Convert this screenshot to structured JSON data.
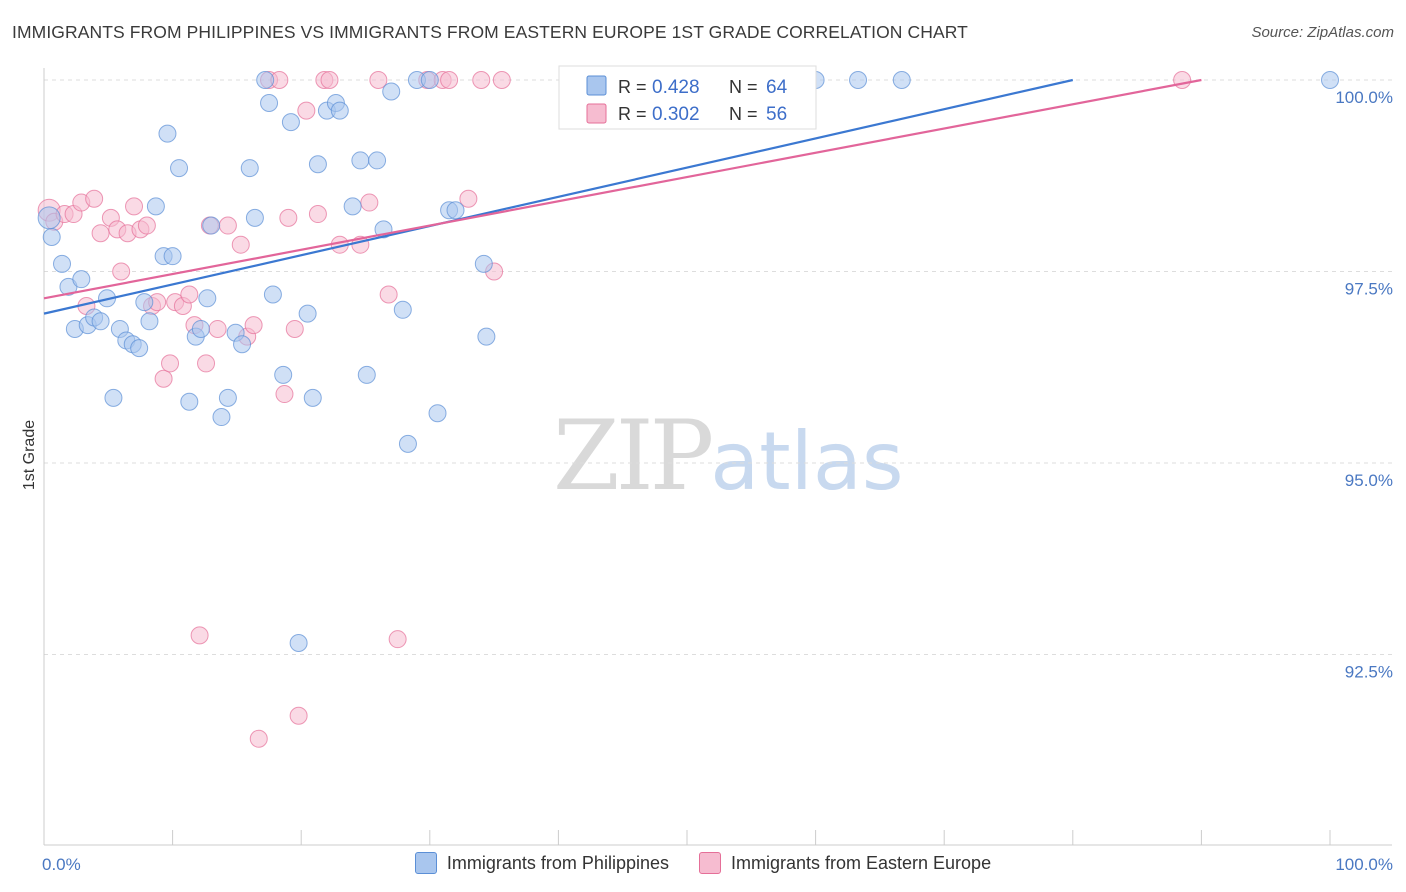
{
  "title": "IMMIGRANTS FROM PHILIPPINES VS IMMIGRANTS FROM EASTERN EUROPE 1ST GRADE CORRELATION CHART",
  "source": "Source: ZipAtlas.com",
  "watermark": {
    "zip": "ZIP",
    "atlas": "atlas"
  },
  "colors": {
    "blue": "#5b8fd6",
    "blue_fill": "#a9c6ee",
    "pink": "#e56f98",
    "pink_fill": "#f6bcd0",
    "tick_text": "#4a78c2",
    "grid": "#dddddd"
  },
  "legend": {
    "series1": {
      "r_label": "R =",
      "r_value": "0.428",
      "n_label": "N =",
      "n_value": "64"
    },
    "series2": {
      "r_label": "R =",
      "r_value": "0.302",
      "n_label": "N =",
      "n_value": "56"
    }
  },
  "bottom_legend": {
    "series1": "Immigrants from Philippines",
    "series2": "Immigrants from Eastern Europe"
  },
  "chart_data": {
    "type": "scatter",
    "title": "IMMIGRANTS FROM PHILIPPINES VS IMMIGRANTS FROM EASTERN EUROPE 1ST GRADE CORRELATION CHART",
    "xlabel": "",
    "ylabel": "1st Grade",
    "xlim": [
      0,
      100
    ],
    "ylim": [
      90.1,
      100.3
    ],
    "x_tick_labels": [
      "0.0%",
      "100.0%"
    ],
    "y_ticks": [
      100.0,
      97.5,
      95.0,
      92.5
    ],
    "y_tick_labels": [
      "100.0%",
      "97.5%",
      "95.0%",
      "92.5%"
    ],
    "grid": true,
    "series": [
      {
        "name": "Immigrants from Philippines",
        "color": "#5b8fd6",
        "trend": {
          "x": [
            0,
            80
          ],
          "y": [
            96.95,
            100.0
          ]
        },
        "points": [
          {
            "x": 0.4,
            "y": 98.2
          },
          {
            "x": 0.6,
            "y": 97.95
          },
          {
            "x": 1.4,
            "y": 97.6
          },
          {
            "x": 1.9,
            "y": 97.3
          },
          {
            "x": 2.4,
            "y": 96.75
          },
          {
            "x": 2.9,
            "y": 97.4
          },
          {
            "x": 3.4,
            "y": 96.8
          },
          {
            "x": 3.9,
            "y": 96.9
          },
          {
            "x": 4.4,
            "y": 96.85
          },
          {
            "x": 4.9,
            "y": 97.15
          },
          {
            "x": 5.4,
            "y": 95.85
          },
          {
            "x": 5.9,
            "y": 96.75
          },
          {
            "x": 6.4,
            "y": 96.6
          },
          {
            "x": 6.9,
            "y": 96.55
          },
          {
            "x": 7.4,
            "y": 96.5
          },
          {
            "x": 7.8,
            "y": 97.1
          },
          {
            "x": 8.2,
            "y": 96.85
          },
          {
            "x": 8.7,
            "y": 98.35
          },
          {
            "x": 9.3,
            "y": 97.7
          },
          {
            "x": 9.6,
            "y": 99.3
          },
          {
            "x": 10.0,
            "y": 97.7
          },
          {
            "x": 10.5,
            "y": 98.85
          },
          {
            "x": 11.3,
            "y": 95.8
          },
          {
            "x": 11.8,
            "y": 96.65
          },
          {
            "x": 12.2,
            "y": 96.75
          },
          {
            "x": 12.7,
            "y": 97.15
          },
          {
            "x": 13.0,
            "y": 98.1
          },
          {
            "x": 13.8,
            "y": 95.6
          },
          {
            "x": 14.3,
            "y": 95.85
          },
          {
            "x": 14.9,
            "y": 96.7
          },
          {
            "x": 15.4,
            "y": 96.55
          },
          {
            "x": 16.0,
            "y": 98.85
          },
          {
            "x": 16.4,
            "y": 98.2
          },
          {
            "x": 17.2,
            "y": 100.0
          },
          {
            "x": 17.5,
            "y": 99.7
          },
          {
            "x": 17.8,
            "y": 97.2
          },
          {
            "x": 18.6,
            "y": 96.15
          },
          {
            "x": 19.2,
            "y": 99.45
          },
          {
            "x": 19.8,
            "y": 92.65
          },
          {
            "x": 20.5,
            "y": 96.95
          },
          {
            "x": 20.9,
            "y": 95.85
          },
          {
            "x": 21.3,
            "y": 98.9
          },
          {
            "x": 22.0,
            "y": 99.6
          },
          {
            "x": 22.7,
            "y": 99.7
          },
          {
            "x": 23.0,
            "y": 99.6
          },
          {
            "x": 24.0,
            "y": 98.35
          },
          {
            "x": 24.6,
            "y": 98.95
          },
          {
            "x": 25.1,
            "y": 96.15
          },
          {
            "x": 25.9,
            "y": 98.95
          },
          {
            "x": 26.4,
            "y": 98.05
          },
          {
            "x": 27.0,
            "y": 99.85
          },
          {
            "x": 27.9,
            "y": 97.0
          },
          {
            "x": 28.3,
            "y": 95.25
          },
          {
            "x": 29.0,
            "y": 100.0
          },
          {
            "x": 30.0,
            "y": 100.0
          },
          {
            "x": 30.6,
            "y": 95.65
          },
          {
            "x": 31.5,
            "y": 98.3
          },
          {
            "x": 32.0,
            "y": 98.3
          },
          {
            "x": 34.2,
            "y": 97.6
          },
          {
            "x": 34.4,
            "y": 96.65
          },
          {
            "x": 60.0,
            "y": 100.0
          },
          {
            "x": 63.3,
            "y": 100.0
          },
          {
            "x": 66.7,
            "y": 100.0
          },
          {
            "x": 100.0,
            "y": 100.0
          }
        ]
      },
      {
        "name": "Immigrants from Eastern Europe",
        "color": "#e56f98",
        "trend": {
          "x": [
            0,
            90
          ],
          "y": [
            97.15,
            100.0
          ]
        },
        "points": [
          {
            "x": 0.4,
            "y": 98.3
          },
          {
            "x": 0.8,
            "y": 98.15
          },
          {
            "x": 1.6,
            "y": 98.25
          },
          {
            "x": 2.3,
            "y": 98.25
          },
          {
            "x": 2.9,
            "y": 98.4
          },
          {
            "x": 3.3,
            "y": 97.05
          },
          {
            "x": 3.9,
            "y": 98.45
          },
          {
            "x": 4.4,
            "y": 98.0
          },
          {
            "x": 5.2,
            "y": 98.2
          },
          {
            "x": 5.7,
            "y": 98.05
          },
          {
            "x": 6.0,
            "y": 97.5
          },
          {
            "x": 6.5,
            "y": 98.0
          },
          {
            "x": 7.0,
            "y": 98.35
          },
          {
            "x": 7.5,
            "y": 98.05
          },
          {
            "x": 8.0,
            "y": 98.1
          },
          {
            "x": 8.4,
            "y": 97.05
          },
          {
            "x": 8.8,
            "y": 97.1
          },
          {
            "x": 9.3,
            "y": 96.1
          },
          {
            "x": 9.8,
            "y": 96.3
          },
          {
            "x": 10.2,
            "y": 97.1
          },
          {
            "x": 10.8,
            "y": 97.05
          },
          {
            "x": 11.3,
            "y": 97.2
          },
          {
            "x": 11.7,
            "y": 96.8
          },
          {
            "x": 12.1,
            "y": 92.75
          },
          {
            "x": 12.6,
            "y": 96.3
          },
          {
            "x": 12.9,
            "y": 98.1
          },
          {
            "x": 13.5,
            "y": 96.75
          },
          {
            "x": 14.3,
            "y": 98.1
          },
          {
            "x": 15.3,
            "y": 97.85
          },
          {
            "x": 15.8,
            "y": 96.65
          },
          {
            "x": 16.3,
            "y": 96.8
          },
          {
            "x": 16.7,
            "y": 91.4
          },
          {
            "x": 17.5,
            "y": 100.0
          },
          {
            "x": 18.3,
            "y": 100.0
          },
          {
            "x": 18.7,
            "y": 95.9
          },
          {
            "x": 19.0,
            "y": 98.2
          },
          {
            "x": 19.5,
            "y": 96.75
          },
          {
            "x": 19.8,
            "y": 91.7
          },
          {
            "x": 20.4,
            "y": 99.6
          },
          {
            "x": 21.3,
            "y": 98.25
          },
          {
            "x": 21.8,
            "y": 100.0
          },
          {
            "x": 22.2,
            "y": 100.0
          },
          {
            "x": 23.0,
            "y": 97.85
          },
          {
            "x": 24.6,
            "y": 97.85
          },
          {
            "x": 25.3,
            "y": 98.4
          },
          {
            "x": 26.0,
            "y": 100.0
          },
          {
            "x": 26.8,
            "y": 97.2
          },
          {
            "x": 27.5,
            "y": 92.7
          },
          {
            "x": 29.8,
            "y": 100.0
          },
          {
            "x": 31.0,
            "y": 100.0
          },
          {
            "x": 31.5,
            "y": 100.0
          },
          {
            "x": 33.0,
            "y": 98.45
          },
          {
            "x": 34.0,
            "y": 100.0
          },
          {
            "x": 35.0,
            "y": 97.5
          },
          {
            "x": 35.6,
            "y": 100.0
          },
          {
            "x": 88.5,
            "y": 100.0
          }
        ]
      }
    ]
  }
}
